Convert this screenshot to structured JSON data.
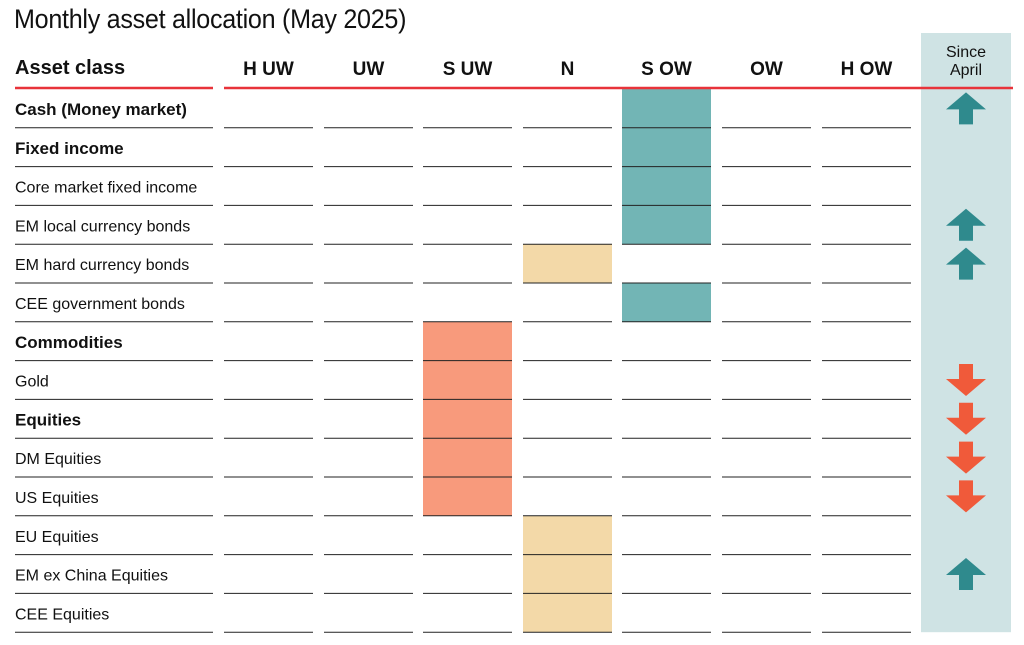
{
  "title": "Monthly asset allocation (May 2025)",
  "chart_data": {
    "type": "table",
    "row_header": "Asset class",
    "columns": [
      "H UW",
      "UW",
      "S UW",
      "N",
      "S OW",
      "OW",
      "H OW"
    ],
    "change_header": [
      "Since",
      "April"
    ],
    "rows": [
      {
        "label": "Cash (Money market)",
        "bold": true,
        "position": "S OW",
        "change": "up"
      },
      {
        "label": "Fixed income",
        "bold": true,
        "position": "S OW",
        "change": ""
      },
      {
        "label": "Core market fixed income",
        "bold": false,
        "position": "S OW",
        "change": ""
      },
      {
        "label": "EM local currency bonds",
        "bold": false,
        "position": "S OW",
        "change": "up"
      },
      {
        "label": "EM hard currency bonds",
        "bold": false,
        "position": "N",
        "change": "up"
      },
      {
        "label": "CEE government bonds",
        "bold": false,
        "position": "S OW",
        "change": ""
      },
      {
        "label": "Commodities",
        "bold": true,
        "position": "S UW",
        "change": ""
      },
      {
        "label": "Gold",
        "bold": false,
        "position": "S UW",
        "change": "down"
      },
      {
        "label": "Equities",
        "bold": true,
        "position": "S UW",
        "change": "down"
      },
      {
        "label": "DM Equities",
        "bold": false,
        "position": "S UW",
        "change": "down"
      },
      {
        "label": "US Equities",
        "bold": false,
        "position": "S UW",
        "change": "down"
      },
      {
        "label": "EU Equities",
        "bold": false,
        "position": "N",
        "change": ""
      },
      {
        "label": "EM ex China Equities",
        "bold": false,
        "position": "N",
        "change": "up"
      },
      {
        "label": "CEE Equities",
        "bold": false,
        "position": "N",
        "change": ""
      }
    ],
    "colors": {
      "S UW": "#f89a7c",
      "N": "#f3d9a8",
      "S OW": "#72b5b5",
      "change_column_bg": "#cfe3e4",
      "up_arrow": "#2f8a8d",
      "down_arrow": "#f05a3a",
      "header_rule": "#e8333a"
    }
  }
}
